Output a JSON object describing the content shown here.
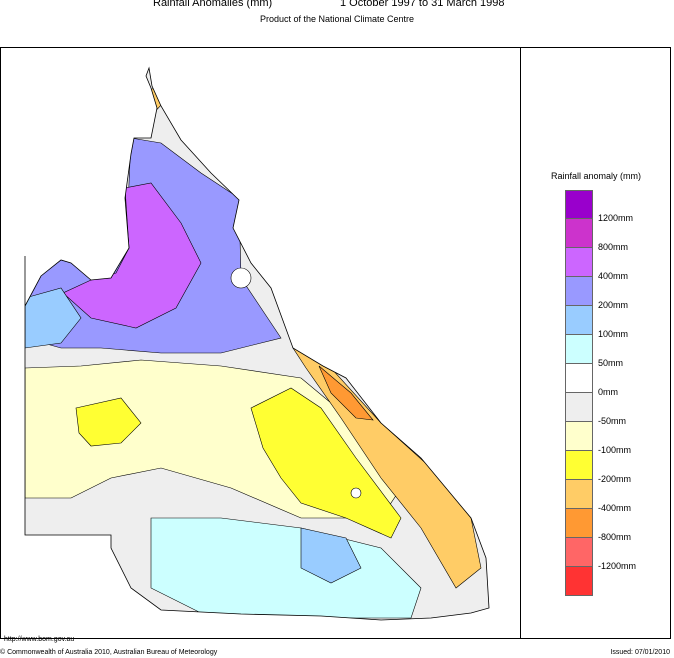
{
  "header": {
    "title": "Rainfall Anomalies (mm)",
    "period": "1 October 1997 to 31 March 1998",
    "subtitle": "Product of the National Climate Centre"
  },
  "legend": {
    "title": "Rainfall anomaly (mm)",
    "swatches": [
      {
        "color": "#9900cc"
      },
      {
        "color": "#cc33cc"
      },
      {
        "color": "#cc66ff"
      },
      {
        "color": "#9999ff"
      },
      {
        "color": "#99ccff"
      },
      {
        "color": "#ccffff"
      },
      {
        "color": "#ffffff"
      },
      {
        "color": "#eeeeee"
      },
      {
        "color": "#ffffcc"
      },
      {
        "color": "#ffff33"
      },
      {
        "color": "#ffcc66"
      },
      {
        "color": "#ff9933"
      },
      {
        "color": "#ff6666"
      },
      {
        "color": "#ff3333"
      }
    ],
    "labels": [
      "1200mm",
      "800mm",
      "400mm",
      "200mm",
      "100mm",
      "50mm",
      "0mm",
      "-50mm",
      "-100mm",
      "-200mm",
      "-400mm",
      "-800mm",
      "-1200mm"
    ]
  },
  "footer": {
    "url": "http://www.bom.gov.au",
    "copyright": "© Commonwealth of Australia 2010, Australian Bureau of Meteorology",
    "issued": "Issued: 07/01/2010"
  }
}
